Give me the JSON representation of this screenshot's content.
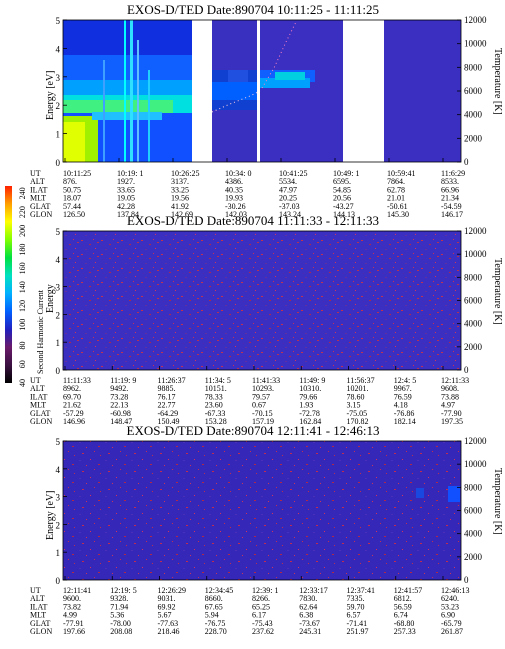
{
  "chart_data": {
    "type": "heatmap",
    "colorbar": {
      "label": "Second Harmonic Current",
      "ticks": [
        "40",
        "60",
        "80",
        "100",
        "120",
        "140",
        "160",
        "180",
        "200",
        "220",
        "240"
      ],
      "range": [
        40,
        250
      ],
      "colors": [
        "#000000",
        "#3a1040",
        "#6a1a6a",
        "#2020c0",
        "#0060ff",
        "#00b0ff",
        "#00e0c0",
        "#00e040",
        "#80ff00",
        "#ffff00",
        "#ffa000",
        "#ff2000"
      ]
    },
    "panels": [
      {
        "title": "EXOS-D/TED   Date:890704   10:11:25 - 11:11:25",
        "ylabel": "Energy [eV]",
        "ylabel_right": "Temperature [K]",
        "y_ticks": [
          "0",
          "1",
          "2",
          "3",
          "4",
          "5"
        ],
        "y_right_ticks": [
          "0",
          "2000",
          "4000",
          "6000",
          "8000",
          "10000",
          "12000"
        ],
        "ylim": [
          0,
          5
        ],
        "y_right_lim": [
          0,
          12000
        ],
        "ephemeris_labels": [
          "UT",
          "ALT",
          "ILAT",
          "MLT",
          "GLAT",
          "GLON"
        ],
        "columns": [
          [
            "10:11:25",
            "876.",
            "50.75",
            "18.07",
            "57.44",
            "126.50"
          ],
          [
            "10:19: 1",
            "1927.",
            "33.65",
            "19.05",
            "42.28",
            "137.84"
          ],
          [
            "10:26:25",
            "3137.",
            "33.25",
            "19.56",
            "41.92",
            "142.69"
          ],
          [
            "10:34: 0",
            "4386.",
            "40.35",
            "19.93",
            "-30.26",
            "142.03"
          ],
          [
            "10:41:25",
            "5534.",
            "47.97",
            "20.25",
            "-37.03",
            "143.24"
          ],
          [
            "10:49: 1",
            "6595.",
            "54.85",
            "20.56",
            "-43.27",
            "144.13"
          ],
          [
            "10:59:41",
            "7864.",
            "62.78",
            "21.01",
            "-50.61",
            "145.30"
          ],
          [
            "11:6:29",
            "8533.",
            "66.96",
            "21.34",
            "-54.59",
            "146.17"
          ]
        ]
      },
      {
        "title": "EXOS-D/TED   Date:890704   11:11:33 - 12:11:33",
        "ylabel": "Energy",
        "ylabel_right": "Temperature [K]",
        "y_ticks": [
          "0",
          "1",
          "2",
          "3",
          "4",
          "5"
        ],
        "y_right_ticks": [
          "0",
          "2000",
          "4000",
          "6000",
          "8000",
          "10000",
          "12000"
        ],
        "ylim": [
          0,
          5
        ],
        "y_right_lim": [
          0,
          12000
        ],
        "ephemeris_labels": [
          "UT",
          "ALT",
          "ILAT",
          "MLT",
          "GLAT",
          "GLON"
        ],
        "columns": [
          [
            "11:11:33",
            "8962.",
            "69.70",
            "21.62",
            "-57.29",
            "146.96"
          ],
          [
            "11:19: 9",
            "9492.",
            "73.28",
            "22.13",
            "-60.98",
            "148.47"
          ],
          [
            "11:26:37",
            "9885.",
            "76.17",
            "22.77",
            "-64.29",
            "150.49"
          ],
          [
            "11:34: 5",
            "10151.",
            "78.33",
            "23.60",
            "-67.33",
            "153.28"
          ],
          [
            "11:41:33",
            "10293.",
            "79.57",
            "0.67",
            "-70.15",
            "157.19"
          ],
          [
            "11:49: 9",
            "10310.",
            "79.66",
            "1.93",
            "-72.78",
            "162.84"
          ],
          [
            "11:56:37",
            "10201.",
            "78.60",
            "3.15",
            "-75.05",
            "170.82"
          ],
          [
            "12:4: 5",
            "9967.",
            "76.59",
            "4.18",
            "-76.86",
            "182.14"
          ],
          [
            "12:11:33",
            "9608.",
            "73.88",
            "4.97",
            "-77.90",
            "197.35"
          ]
        ]
      },
      {
        "title": "EXOS-D/TED   Date:890704   12:11:41 - 12:46:13",
        "ylabel": "Energy [eV]",
        "ylabel_right": "Temperature [K]",
        "y_ticks": [
          "0",
          "1",
          "2",
          "3",
          "4",
          "5"
        ],
        "y_right_ticks": [
          "0",
          "2000",
          "4000",
          "6000",
          "8000",
          "10000",
          "12000"
        ],
        "ylim": [
          0,
          5
        ],
        "y_right_lim": [
          0,
          12000
        ],
        "ephemeris_labels": [
          "UT",
          "ALT",
          "ILAT",
          "MLT",
          "GLAT",
          "GLON"
        ],
        "columns": [
          [
            "12:11:41",
            "9600.",
            "73.82",
            "4.99",
            "-77.91",
            "197.66"
          ],
          [
            "12:19: 5",
            "9328.",
            "71.94",
            "5.36",
            "-78.00",
            "208.08"
          ],
          [
            "12:26:29",
            "9031.",
            "69.92",
            "5.67",
            "-77.63",
            "218.46"
          ],
          [
            "12:34:45",
            "8660.",
            "67.65",
            "5.94",
            "-76.75",
            "228.70"
          ],
          [
            "12:39: 1",
            "8266.",
            "65.25",
            "6.17",
            "-75.43",
            "237.62"
          ],
          [
            "12:33:17",
            "7830.",
            "62.64",
            "6.38",
            "-73.67",
            "245.31"
          ],
          [
            "12:37:41",
            "7335.",
            "59.70",
            "6.57",
            "-71.41",
            "251.97"
          ],
          [
            "12:41:57",
            "6812.",
            "56.59",
            "6.74",
            "-68.80",
            "257.33"
          ],
          [
            "12:46:13",
            "6240.",
            "53.23",
            "6.90",
            "-65.79",
            "261.87"
          ]
        ]
      }
    ]
  }
}
